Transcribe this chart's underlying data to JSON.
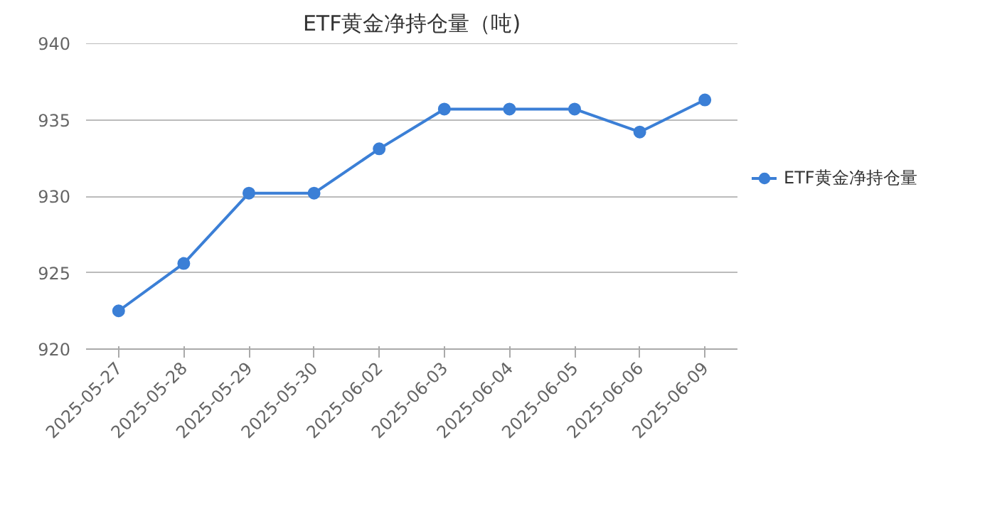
{
  "chart_data": {
    "type": "line",
    "title": "ETF黄金净持仓量（吨)",
    "categories": [
      "2025-05-27",
      "2025-05-28",
      "2025-05-29",
      "2025-05-30",
      "2025-06-02",
      "2025-06-03",
      "2025-06-04",
      "2025-06-05",
      "2025-06-06",
      "2025-06-09"
    ],
    "series": [
      {
        "name": "ETF黄金净持仓量",
        "color": "#3b7fd6",
        "values": [
          922.5,
          925.6,
          930.2,
          930.2,
          933.1,
          935.7,
          935.7,
          935.7,
          934.2,
          936.3
        ]
      }
    ],
    "ylim": [
      920,
      940
    ],
    "yticks": [
      920,
      925,
      930,
      935,
      940
    ],
    "grid": "y",
    "legend": "right",
    "marker": "circle",
    "line_style": "solid"
  }
}
